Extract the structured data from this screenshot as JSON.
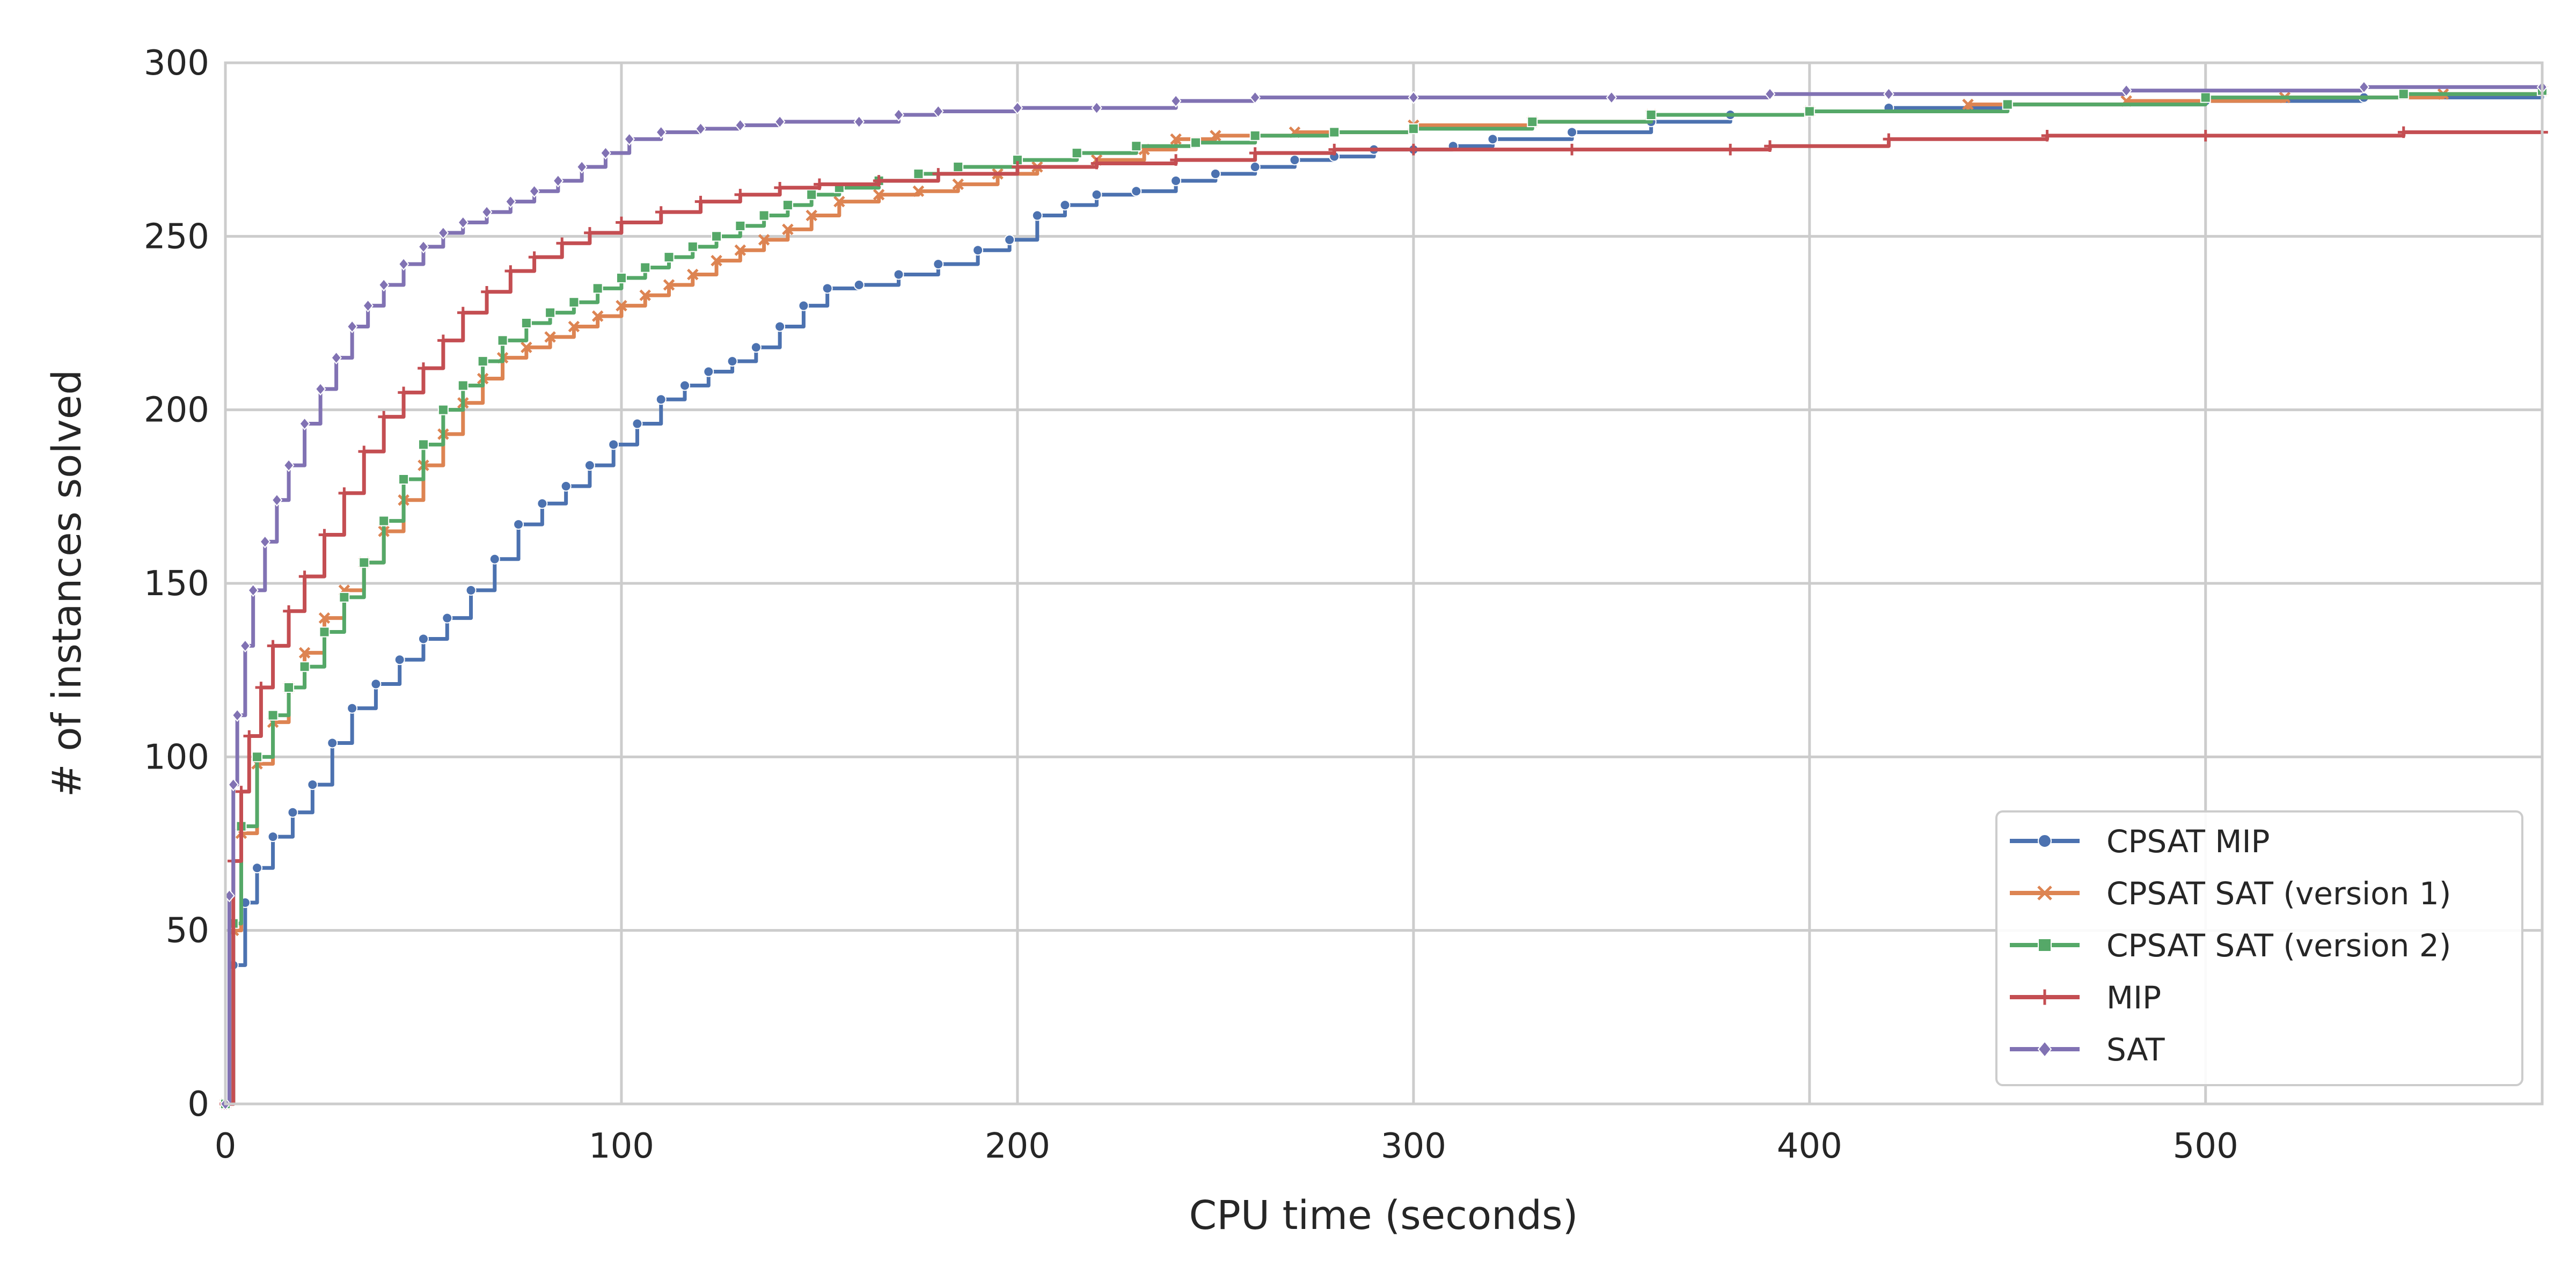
{
  "chart_data": {
    "type": "line",
    "title": "",
    "xlabel": "CPU time (seconds)",
    "ylabel": "# of instances solved",
    "xlim": [
      0,
      585
    ],
    "ylim": [
      0,
      300
    ],
    "xticks": [
      0,
      100,
      200,
      300,
      400,
      500
    ],
    "yticks": [
      0,
      50,
      100,
      150,
      200,
      250,
      300
    ],
    "grid": true,
    "legend_position": "lower-right",
    "series": [
      {
        "name": "CPSAT MIP",
        "color": "#4C72B0",
        "marker": "circle",
        "points": [
          [
            0,
            0
          ],
          [
            2,
            40
          ],
          [
            5,
            58
          ],
          [
            8,
            68
          ],
          [
            12,
            77
          ],
          [
            17,
            84
          ],
          [
            22,
            92
          ],
          [
            27,
            104
          ],
          [
            32,
            114
          ],
          [
            38,
            121
          ],
          [
            44,
            128
          ],
          [
            50,
            134
          ],
          [
            56,
            140
          ],
          [
            62,
            148
          ],
          [
            68,
            157
          ],
          [
            74,
            167
          ],
          [
            80,
            173
          ],
          [
            86,
            178
          ],
          [
            92,
            184
          ],
          [
            98,
            190
          ],
          [
            104,
            196
          ],
          [
            110,
            203
          ],
          [
            116,
            207
          ],
          [
            122,
            211
          ],
          [
            128,
            214
          ],
          [
            134,
            218
          ],
          [
            140,
            224
          ],
          [
            146,
            230
          ],
          [
            152,
            235
          ],
          [
            160,
            236
          ],
          [
            170,
            239
          ],
          [
            180,
            242
          ],
          [
            190,
            246
          ],
          [
            198,
            249
          ],
          [
            205,
            256
          ],
          [
            212,
            259
          ],
          [
            220,
            262
          ],
          [
            230,
            263
          ],
          [
            240,
            266
          ],
          [
            250,
            268
          ],
          [
            260,
            270
          ],
          [
            270,
            272
          ],
          [
            280,
            273
          ],
          [
            290,
            275
          ],
          [
            300,
            275
          ],
          [
            310,
            276
          ],
          [
            320,
            278
          ],
          [
            340,
            280
          ],
          [
            360,
            283
          ],
          [
            380,
            285
          ],
          [
            400,
            286
          ],
          [
            420,
            287
          ],
          [
            450,
            288
          ],
          [
            500,
            289
          ],
          [
            540,
            290
          ],
          [
            585,
            292
          ]
        ]
      },
      {
        "name": "CPSAT SAT (version 1)",
        "color": "#DD8452",
        "marker": "x",
        "points": [
          [
            0,
            0
          ],
          [
            2,
            50
          ],
          [
            4,
            78
          ],
          [
            8,
            98
          ],
          [
            12,
            110
          ],
          [
            16,
            120
          ],
          [
            20,
            130
          ],
          [
            25,
            140
          ],
          [
            30,
            148
          ],
          [
            35,
            156
          ],
          [
            40,
            165
          ],
          [
            45,
            174
          ],
          [
            50,
            184
          ],
          [
            55,
            193
          ],
          [
            60,
            202
          ],
          [
            65,
            209
          ],
          [
            70,
            215
          ],
          [
            76,
            218
          ],
          [
            82,
            221
          ],
          [
            88,
            224
          ],
          [
            94,
            227
          ],
          [
            100,
            230
          ],
          [
            106,
            233
          ],
          [
            112,
            236
          ],
          [
            118,
            239
          ],
          [
            124,
            243
          ],
          [
            130,
            246
          ],
          [
            136,
            249
          ],
          [
            142,
            252
          ],
          [
            148,
            256
          ],
          [
            155,
            260
          ],
          [
            165,
            262
          ],
          [
            175,
            263
          ],
          [
            185,
            265
          ],
          [
            195,
            268
          ],
          [
            205,
            270
          ],
          [
            220,
            272
          ],
          [
            232,
            275
          ],
          [
            240,
            278
          ],
          [
            250,
            279
          ],
          [
            270,
            280
          ],
          [
            300,
            282
          ],
          [
            330,
            283
          ],
          [
            360,
            285
          ],
          [
            400,
            286
          ],
          [
            440,
            288
          ],
          [
            480,
            289
          ],
          [
            520,
            290
          ],
          [
            560,
            291
          ],
          [
            585,
            292
          ]
        ]
      },
      {
        "name": "CPSAT SAT (version 2)",
        "color": "#55A868",
        "marker": "square",
        "points": [
          [
            0,
            0
          ],
          [
            2,
            52
          ],
          [
            4,
            80
          ],
          [
            8,
            100
          ],
          [
            12,
            112
          ],
          [
            16,
            120
          ],
          [
            20,
            126
          ],
          [
            25,
            136
          ],
          [
            30,
            146
          ],
          [
            35,
            156
          ],
          [
            40,
            168
          ],
          [
            45,
            180
          ],
          [
            50,
            190
          ],
          [
            55,
            200
          ],
          [
            60,
            207
          ],
          [
            65,
            214
          ],
          [
            70,
            220
          ],
          [
            76,
            225
          ],
          [
            82,
            228
          ],
          [
            88,
            231
          ],
          [
            94,
            235
          ],
          [
            100,
            238
          ],
          [
            106,
            241
          ],
          [
            112,
            244
          ],
          [
            118,
            247
          ],
          [
            124,
            250
          ],
          [
            130,
            253
          ],
          [
            136,
            256
          ],
          [
            142,
            259
          ],
          [
            148,
            262
          ],
          [
            155,
            264
          ],
          [
            165,
            266
          ],
          [
            175,
            268
          ],
          [
            185,
            270
          ],
          [
            200,
            272
          ],
          [
            215,
            274
          ],
          [
            230,
            276
          ],
          [
            245,
            277
          ],
          [
            260,
            279
          ],
          [
            280,
            280
          ],
          [
            300,
            281
          ],
          [
            330,
            283
          ],
          [
            360,
            285
          ],
          [
            400,
            286
          ],
          [
            450,
            288
          ],
          [
            500,
            290
          ],
          [
            550,
            291
          ],
          [
            585,
            292
          ]
        ]
      },
      {
        "name": "MIP",
        "color": "#C44E52",
        "marker": "plus",
        "points": [
          [
            0,
            0
          ],
          [
            2,
            70
          ],
          [
            4,
            90
          ],
          [
            6,
            106
          ],
          [
            9,
            120
          ],
          [
            12,
            132
          ],
          [
            16,
            142
          ],
          [
            20,
            152
          ],
          [
            25,
            164
          ],
          [
            30,
            176
          ],
          [
            35,
            188
          ],
          [
            40,
            198
          ],
          [
            45,
            205
          ],
          [
            50,
            212
          ],
          [
            55,
            220
          ],
          [
            60,
            228
          ],
          [
            66,
            234
          ],
          [
            72,
            240
          ],
          [
            78,
            244
          ],
          [
            85,
            248
          ],
          [
            92,
            251
          ],
          [
            100,
            254
          ],
          [
            110,
            257
          ],
          [
            120,
            260
          ],
          [
            130,
            262
          ],
          [
            140,
            264
          ],
          [
            150,
            265
          ],
          [
            165,
            266
          ],
          [
            180,
            268
          ],
          [
            200,
            270
          ],
          [
            220,
            271
          ],
          [
            240,
            272
          ],
          [
            260,
            274
          ],
          [
            280,
            275
          ],
          [
            300,
            275
          ],
          [
            340,
            275
          ],
          [
            380,
            275
          ],
          [
            390,
            276
          ],
          [
            420,
            278
          ],
          [
            460,
            279
          ],
          [
            500,
            279
          ],
          [
            550,
            280
          ],
          [
            585,
            280
          ]
        ]
      },
      {
        "name": "SAT",
        "color": "#8172B3",
        "marker": "diamond",
        "points": [
          [
            0,
            0
          ],
          [
            1,
            60
          ],
          [
            2,
            92
          ],
          [
            3,
            112
          ],
          [
            5,
            132
          ],
          [
            7,
            148
          ],
          [
            10,
            162
          ],
          [
            13,
            174
          ],
          [
            16,
            184
          ],
          [
            20,
            196
          ],
          [
            24,
            206
          ],
          [
            28,
            215
          ],
          [
            32,
            224
          ],
          [
            36,
            230
          ],
          [
            40,
            236
          ],
          [
            45,
            242
          ],
          [
            50,
            247
          ],
          [
            55,
            251
          ],
          [
            60,
            254
          ],
          [
            66,
            257
          ],
          [
            72,
            260
          ],
          [
            78,
            263
          ],
          [
            84,
            266
          ],
          [
            90,
            270
          ],
          [
            96,
            274
          ],
          [
            102,
            278
          ],
          [
            110,
            280
          ],
          [
            120,
            281
          ],
          [
            130,
            282
          ],
          [
            140,
            283
          ],
          [
            160,
            283
          ],
          [
            170,
            285
          ],
          [
            180,
            286
          ],
          [
            200,
            287
          ],
          [
            220,
            287
          ],
          [
            240,
            289
          ],
          [
            260,
            290
          ],
          [
            300,
            290
          ],
          [
            350,
            290
          ],
          [
            390,
            291
          ],
          [
            420,
            291
          ],
          [
            480,
            292
          ],
          [
            540,
            293
          ],
          [
            585,
            293
          ]
        ]
      }
    ]
  }
}
